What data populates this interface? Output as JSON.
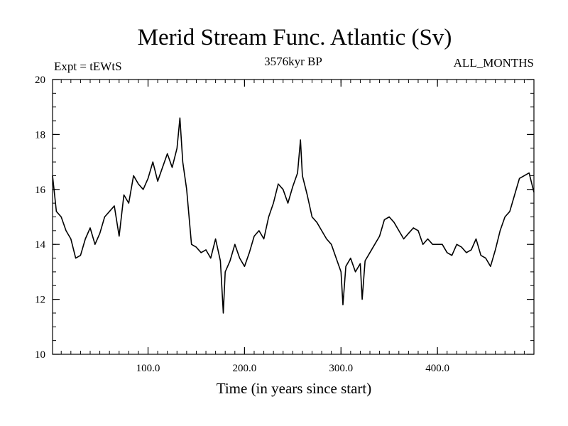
{
  "chart_data": {
    "type": "line",
    "title": "Merid Stream Func. Atlantic (Sv)",
    "subtitle_left": "Expt = tEWtS",
    "subtitle_center": "3576kyr BP",
    "subtitle_right": "ALL_MONTHS",
    "xlabel": "Time (in years since start)",
    "ylabel": "",
    "xlim": [
      1,
      500
    ],
    "ylim": [
      10,
      20
    ],
    "xticks": [
      100,
      200,
      300,
      400
    ],
    "xtick_labels": [
      "100.0",
      "200.0",
      "300.0",
      "400.0"
    ],
    "yticks": [
      10,
      12,
      14,
      16,
      18,
      20
    ],
    "ytick_labels": [
      "10",
      "12",
      "14",
      "16",
      "18",
      "20"
    ],
    "series": [
      {
        "name": "Merid Stream Func. Atlantic",
        "color": "#000000",
        "x": [
          1,
          5,
          10,
          15,
          20,
          25,
          30,
          35,
          40,
          45,
          50,
          55,
          60,
          65,
          70,
          75,
          80,
          85,
          90,
          95,
          100,
          105,
          110,
          115,
          120,
          125,
          130,
          133,
          136,
          140,
          145,
          150,
          155,
          160,
          165,
          170,
          175,
          178,
          180,
          185,
          190,
          195,
          200,
          205,
          210,
          215,
          220,
          225,
          230,
          235,
          240,
          245,
          250,
          255,
          258,
          260,
          265,
          270,
          275,
          280,
          285,
          290,
          295,
          300,
          302,
          305,
          310,
          315,
          320,
          322,
          325,
          330,
          335,
          340,
          345,
          350,
          355,
          360,
          365,
          370,
          375,
          380,
          385,
          390,
          395,
          400,
          405,
          410,
          415,
          420,
          425,
          430,
          435,
          440,
          445,
          450,
          455,
          460,
          465,
          470,
          475,
          480,
          485,
          490,
          495,
          500
        ],
        "values": [
          16.5,
          15.2,
          15.0,
          14.5,
          14.2,
          13.5,
          13.6,
          14.2,
          14.6,
          14.0,
          14.4,
          15.0,
          15.2,
          15.4,
          14.3,
          15.8,
          15.5,
          16.5,
          16.2,
          16.0,
          16.4,
          17.0,
          16.3,
          16.8,
          17.3,
          16.8,
          17.5,
          18.6,
          17.0,
          16.0,
          14.0,
          13.9,
          13.7,
          13.8,
          13.5,
          14.2,
          13.4,
          11.5,
          13.0,
          13.4,
          14.0,
          13.5,
          13.2,
          13.7,
          14.3,
          14.5,
          14.2,
          15.0,
          15.5,
          16.2,
          16.0,
          15.5,
          16.1,
          16.6,
          17.8,
          16.5,
          15.8,
          15.0,
          14.8,
          14.5,
          14.2,
          14.0,
          13.5,
          13.0,
          11.8,
          13.2,
          13.5,
          13.0,
          13.3,
          12.0,
          13.4,
          13.7,
          14.0,
          14.3,
          14.9,
          15.0,
          14.8,
          14.5,
          14.2,
          14.4,
          14.6,
          14.5,
          14.0,
          14.2,
          14.0,
          14.0,
          14.0,
          13.7,
          13.6,
          14.0,
          13.9,
          13.7,
          13.8,
          14.2,
          13.6,
          13.5,
          13.2,
          13.8,
          14.5,
          15.0,
          15.2,
          15.8,
          16.4,
          16.5,
          16.6,
          15.9
        ]
      }
    ]
  }
}
